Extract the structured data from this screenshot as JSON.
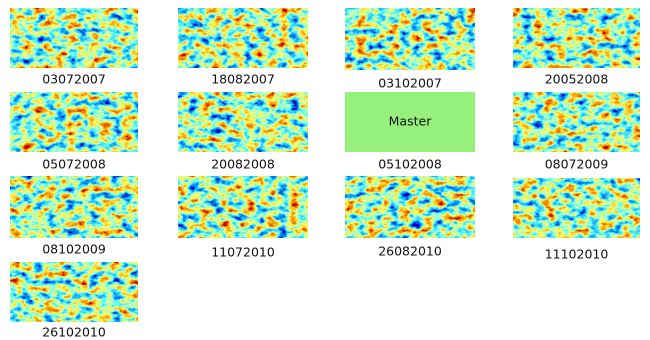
{
  "tiles": [
    {
      "label": "03072007"
    },
    {
      "label": "18082007"
    },
    {
      "label": "03102007"
    },
    {
      "label": "20052008"
    },
    {
      "label": "05072008"
    },
    {
      "label": "20082008"
    },
    {
      "label": "05102008",
      "text": "Master"
    },
    {
      "label": "08072009"
    },
    {
      "label": "08102009"
    },
    {
      "label": "11072010"
    },
    {
      "label": "26082010"
    },
    {
      "label": "11102010"
    },
    {
      "label": "26102010"
    }
  ]
}
